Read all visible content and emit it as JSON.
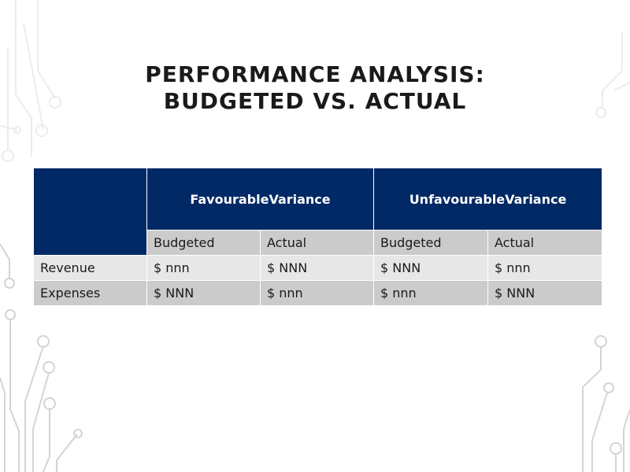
{
  "slide": {
    "title_line1": "PERFORMANCE ANALYSIS:",
    "title_line2": "BUDGETED VS. ACTUAL"
  },
  "table": {
    "group_headers": [
      "FavourableVariance",
      "UnfavourableVariance"
    ],
    "sub_headers": [
      "Budgeted",
      "Actual",
      "Budgeted",
      "Actual"
    ],
    "rows": [
      {
        "label": "Revenue",
        "cells": [
          "$ nnn",
          "$ NNN",
          "$ NNN",
          "$ nnn"
        ]
      },
      {
        "label": "Expenses",
        "cells": [
          "$ NNN",
          "$ nnn",
          "$ nnn",
          "$ NNN"
        ]
      }
    ]
  },
  "colors": {
    "header_navy": "#002966",
    "row_light_gray": "#e7e7e7",
    "row_mid_gray": "#cbcbcb",
    "decor_gray": "#d0d0d0"
  },
  "decor_icon": "circuit-board-lines"
}
